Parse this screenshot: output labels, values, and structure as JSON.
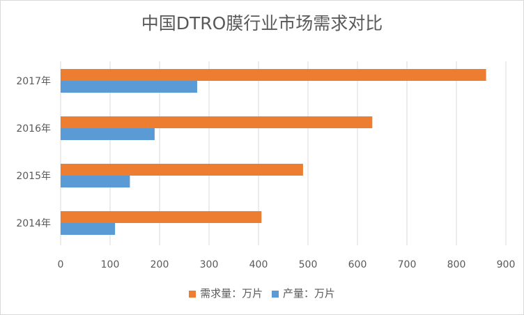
{
  "chart_data": {
    "type": "bar",
    "orientation": "horizontal",
    "title": "中国DTRO膜行业市场需求对比",
    "categories": [
      "2014年",
      "2015年",
      "2016年",
      "2017年"
    ],
    "series": [
      {
        "name": "需求量：万片",
        "color": "#ED7D31",
        "values": [
          406,
          490,
          630,
          860
        ]
      },
      {
        "name": "产量：万片",
        "color": "#5B9BD5",
        "values": [
          110,
          140,
          190,
          276
        ]
      }
    ],
    "xlim": [
      0,
      900
    ],
    "xticks": [
      "0",
      "100",
      "200",
      "300",
      "400",
      "500",
      "600",
      "700",
      "800",
      "900"
    ],
    "grid": true,
    "legend": "bottom"
  }
}
